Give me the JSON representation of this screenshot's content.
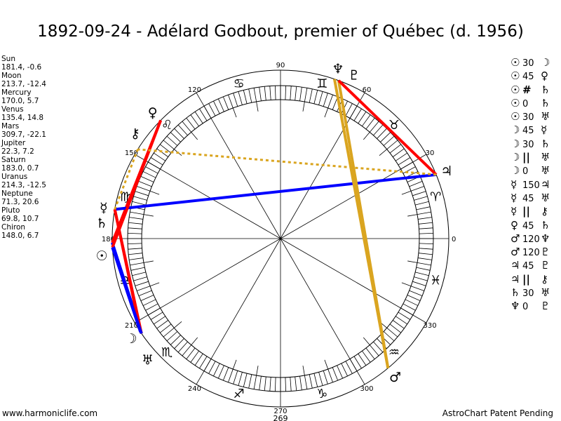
{
  "title": "1892-09-24 - Adélard Godbout, premier of Québec (d. 1956)",
  "planets": [
    {
      "name": "Sun",
      "glyph": "☉",
      "lon": 181.4,
      "text": "181.4, -0.6"
    },
    {
      "name": "Moon",
      "glyph": "☽",
      "lon": 213.7,
      "text": "213.7, -12.4"
    },
    {
      "name": "Mercury",
      "glyph": "☿",
      "lon": 170.0,
      "text": "170.0, 5.7"
    },
    {
      "name": "Venus",
      "glyph": "♀",
      "lon": 135.4,
      "text": "135.4, 14.8"
    },
    {
      "name": "Mars",
      "glyph": "♂",
      "lon": 309.7,
      "text": "309.7, -22.1"
    },
    {
      "name": "Jupiter",
      "glyph": "♃",
      "lon": 22.3,
      "text": "22.3, 7.2"
    },
    {
      "name": "Saturn",
      "glyph": "♄",
      "lon": 183.0,
      "text": "183.0, 0.7"
    },
    {
      "name": "Uranus",
      "glyph": "♅",
      "lon": 214.3,
      "text": "214.3, -12.5"
    },
    {
      "name": "Neptune",
      "glyph": "♆",
      "lon": 71.3,
      "text": "71.3, 20.6"
    },
    {
      "name": "Pluto",
      "glyph": "♇",
      "lon": 69.8,
      "text": "69.8, 10.7"
    },
    {
      "name": "Chiron",
      "glyph": "⚷",
      "lon": 148.0,
      "text": "148.0, 6.7"
    }
  ],
  "aspects": [
    {
      "p1": "Sun",
      "p1g": "☉",
      "type": "30",
      "p2": "Moon",
      "p2g": "☽"
    },
    {
      "p1": "Sun",
      "p1g": "☉",
      "type": "45",
      "p2": "Venus",
      "p2g": "♀"
    },
    {
      "p1": "Sun",
      "p1g": "☉",
      "type": "#",
      "p2": "Saturn",
      "p2g": "♄"
    },
    {
      "p1": "Sun",
      "p1g": "☉",
      "type": "0",
      "p2": "Saturn",
      "p2g": "♄"
    },
    {
      "p1": "Sun",
      "p1g": "☉",
      "type": "30",
      "p2": "Uranus",
      "p2g": "♅"
    },
    {
      "p1": "Moon",
      "p1g": "☽",
      "type": "45",
      "p2": "Mercury",
      "p2g": "☿"
    },
    {
      "p1": "Moon",
      "p1g": "☽",
      "type": "30",
      "p2": "Saturn",
      "p2g": "♄"
    },
    {
      "p1": "Moon",
      "p1g": "☽",
      "type": "||",
      "p2": "Uranus",
      "p2g": "♅"
    },
    {
      "p1": "Moon",
      "p1g": "☽",
      "type": "0",
      "p2": "Uranus",
      "p2g": "♅"
    },
    {
      "p1": "Mercury",
      "p1g": "☿",
      "type": "150",
      "p2": "Jupiter",
      "p2g": "♃"
    },
    {
      "p1": "Mercury",
      "p1g": "☿",
      "type": "45",
      "p2": "Uranus",
      "p2g": "♅"
    },
    {
      "p1": "Mercury",
      "p1g": "☿",
      "type": "||",
      "p2": "Chiron",
      "p2g": "⚷"
    },
    {
      "p1": "Venus",
      "p1g": "♀",
      "type": "45",
      "p2": "Saturn",
      "p2g": "♄"
    },
    {
      "p1": "Mars",
      "p1g": "♂",
      "type": "120",
      "p2": "Neptune",
      "p2g": "♆"
    },
    {
      "p1": "Mars",
      "p1g": "♂",
      "type": "120",
      "p2": "Pluto",
      "p2g": "♇"
    },
    {
      "p1": "Jupiter",
      "p1g": "♃",
      "type": "45",
      "p2": "Pluto",
      "p2g": "♇"
    },
    {
      "p1": "Jupiter",
      "p1g": "♃",
      "type": "||",
      "p2": "Chiron",
      "p2g": "⚷"
    },
    {
      "p1": "Saturn",
      "p1g": "♄",
      "type": "30",
      "p2": "Uranus",
      "p2g": "♅"
    },
    {
      "p1": "Neptune",
      "p1g": "♆",
      "type": "0",
      "p2": "Pluto",
      "p2g": "♇"
    }
  ],
  "aspect_colors": {
    "30": "#0000ff",
    "150": "#0000ff",
    "45": "#ff0000",
    "120": "#daa520",
    "||": "#daa520"
  },
  "signs": [
    "♈",
    "♉",
    "♊",
    "♋",
    "♌",
    "♍",
    "♎",
    "♏",
    "♐",
    "♑",
    "♒",
    "♓"
  ],
  "degree_labels": [
    "0",
    "30",
    "60",
    "90",
    "120",
    "150",
    "180",
    "210",
    "240",
    "270",
    "300",
    "330"
  ],
  "bottom_value": "269",
  "footer": {
    "left": "www.harmoniclife.com",
    "right": "AstroChart Patent Pending"
  },
  "chart_data": {
    "type": "scatter",
    "title": "1892-09-24 - Adélard Godbout, premier of Québec (d. 1956)",
    "description_axis": "ecliptic longitude (degrees, 0 at right, counterclockwise)",
    "points": [
      {
        "name": "Sun",
        "lon": 181.4,
        "lat": -0.6
      },
      {
        "name": "Moon",
        "lon": 213.7,
        "lat": -12.4
      },
      {
        "name": "Mercury",
        "lon": 170.0,
        "lat": 5.7
      },
      {
        "name": "Venus",
        "lon": 135.4,
        "lat": 14.8
      },
      {
        "name": "Mars",
        "lon": 309.7,
        "lat": -22.1
      },
      {
        "name": "Jupiter",
        "lon": 22.3,
        "lat": 7.2
      },
      {
        "name": "Saturn",
        "lon": 183.0,
        "lat": 0.7
      },
      {
        "name": "Uranus",
        "lon": 214.3,
        "lat": -12.5
      },
      {
        "name": "Neptune",
        "lon": 71.3,
        "lat": 20.6
      },
      {
        "name": "Pluto",
        "lon": 69.8,
        "lat": 10.7
      },
      {
        "name": "Chiron",
        "lon": 148.0,
        "lat": 6.7
      }
    ]
  }
}
